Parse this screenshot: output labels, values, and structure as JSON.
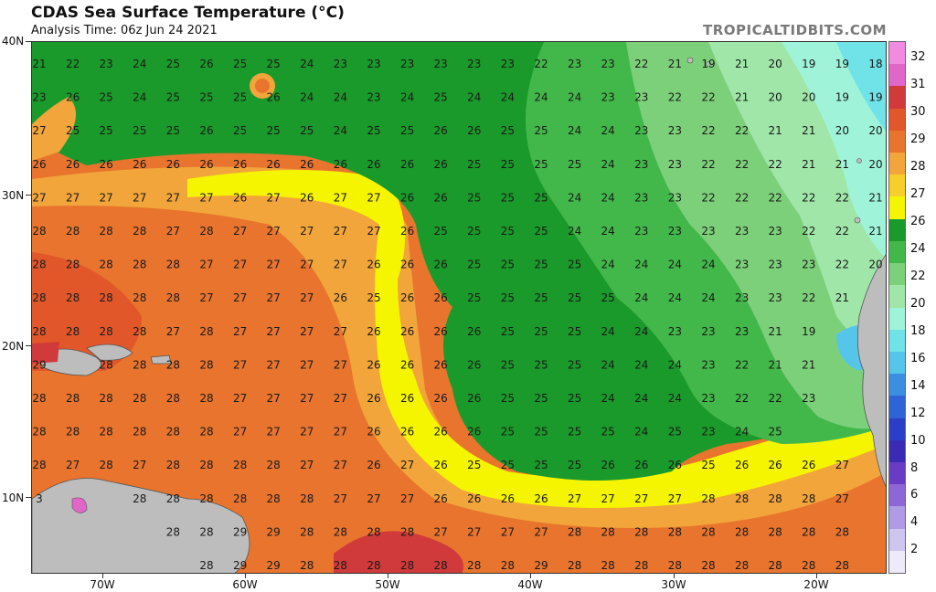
{
  "header": {
    "title": "CDAS Sea Surface Temperature (°C)",
    "subtitle": "Analysis Time: 06z Jun 24 2021",
    "brand": "TROPICALTIDBITS.COM"
  },
  "axes": {
    "lat_labels": [
      "40N",
      "30N",
      "20N",
      "10N"
    ],
    "lon_labels": [
      "70W",
      "60W",
      "50W",
      "40W",
      "30W",
      "20W"
    ]
  },
  "colorbar": {
    "labels": [
      "32",
      "31",
      "30",
      "29",
      "28",
      "27",
      "26",
      "24",
      "22",
      "20",
      "18",
      "16",
      "14",
      "12",
      "10",
      "8",
      "6",
      "4",
      "2"
    ],
    "colors": [
      "#f08be0",
      "#e066c8",
      "#d13a3a",
      "#e2572a",
      "#e8742e",
      "#f2a53a",
      "#f7cf2a",
      "#f5f500",
      "#1a9a2a",
      "#43b84a",
      "#7dd07a",
      "#9fe6a8",
      "#9ff3d8",
      "#6fe3e8",
      "#55c6ea",
      "#3b8fe0",
      "#2f64d6",
      "#2a3fc6",
      "#3a2ab4",
      "#6a3bc4",
      "#8f66d6",
      "#b09be4",
      "#cfc6f0",
      "#eeeaf9"
    ]
  },
  "map": {
    "lats": [
      "40",
      "38",
      "36",
      "34",
      "32",
      "30",
      "28",
      "26",
      "24",
      "22",
      "20",
      "18",
      "16",
      "14",
      "12",
      "10",
      "8",
      "6"
    ],
    "lons": [
      "75",
      "73",
      "71",
      "69",
      "67",
      "65",
      "63",
      "61",
      "59",
      "57",
      "55",
      "53",
      "51",
      "49",
      "47",
      "45",
      "43",
      "41",
      "39",
      "37",
      "35",
      "33",
      "31",
      "29",
      "27",
      "25",
      "23",
      "21",
      "19",
      "17",
      "15"
    ],
    "label_rows": [
      [
        "21",
        "22",
        "23",
        "24",
        "25",
        "26",
        "25",
        "25",
        "24",
        "23",
        "23",
        "23",
        "23",
        "23",
        "23",
        "22",
        "23",
        "23",
        "22",
        "21",
        "19",
        "21",
        "20",
        "19",
        "19",
        "18"
      ],
      [
        "23",
        "26",
        "25",
        "24",
        "25",
        "25",
        "25",
        "26",
        "24",
        "24",
        "23",
        "24",
        "25",
        "24",
        "24",
        "24",
        "24",
        "23",
        "23",
        "22",
        "22",
        "21",
        "20",
        "20",
        "19",
        "19"
      ],
      [
        "27",
        "25",
        "25",
        "25",
        "25",
        "26",
        "25",
        "25",
        "25",
        "24",
        "25",
        "25",
        "26",
        "26",
        "25",
        "25",
        "24",
        "24",
        "23",
        "23",
        "22",
        "22",
        "21",
        "21",
        "20",
        "20"
      ],
      [
        "26",
        "26",
        "26",
        "26",
        "26",
        "26",
        "26",
        "26",
        "26",
        "26",
        "26",
        "26",
        "26",
        "25",
        "25",
        "25",
        "25",
        "24",
        "23",
        "23",
        "22",
        "22",
        "22",
        "21",
        "21",
        "20"
      ],
      [
        "27",
        "27",
        "27",
        "27",
        "27",
        "27",
        "26",
        "27",
        "26",
        "27",
        "27",
        "26",
        "26",
        "25",
        "25",
        "25",
        "24",
        "24",
        "23",
        "23",
        "22",
        "22",
        "22",
        "22",
        "22",
        "21"
      ],
      [
        "28",
        "28",
        "28",
        "28",
        "27",
        "28",
        "27",
        "27",
        "27",
        "27",
        "27",
        "26",
        "25",
        "25",
        "25",
        "25",
        "24",
        "24",
        "23",
        "23",
        "23",
        "23",
        "23",
        "22",
        "22",
        "21"
      ],
      [
        "28",
        "28",
        "28",
        "28",
        "28",
        "27",
        "27",
        "27",
        "27",
        "27",
        "26",
        "26",
        "26",
        "25",
        "25",
        "25",
        "25",
        "24",
        "24",
        "24",
        "24",
        "23",
        "23",
        "23",
        "22",
        "20"
      ],
      [
        "28",
        "28",
        "28",
        "28",
        "28",
        "27",
        "27",
        "27",
        "27",
        "26",
        "25",
        "26",
        "26",
        "25",
        "25",
        "25",
        "25",
        "25",
        "24",
        "24",
        "24",
        "23",
        "23",
        "22",
        "21",
        ""
      ],
      [
        "28",
        "28",
        "28",
        "28",
        "27",
        "28",
        "27",
        "27",
        "27",
        "27",
        "26",
        "26",
        "26",
        "26",
        "25",
        "25",
        "25",
        "24",
        "24",
        "23",
        "23",
        "23",
        "21",
        "19",
        "",
        ""
      ],
      [
        "29",
        "",
        "28",
        "28",
        "28",
        "28",
        "27",
        "27",
        "27",
        "27",
        "26",
        "26",
        "26",
        "26",
        "25",
        "25",
        "25",
        "24",
        "24",
        "24",
        "23",
        "22",
        "21",
        "21",
        "",
        ""
      ],
      [
        "28",
        "28",
        "28",
        "28",
        "28",
        "28",
        "27",
        "27",
        "27",
        "27",
        "26",
        "26",
        "26",
        "26",
        "25",
        "25",
        "25",
        "24",
        "24",
        "24",
        "23",
        "22",
        "22",
        "23",
        "",
        ""
      ],
      [
        "28",
        "28",
        "28",
        "28",
        "28",
        "28",
        "27",
        "27",
        "27",
        "27",
        "26",
        "26",
        "26",
        "26",
        "25",
        "25",
        "25",
        "25",
        "24",
        "25",
        "23",
        "24",
        "25",
        "",
        "",
        ""
      ],
      [
        "28",
        "27",
        "28",
        "27",
        "28",
        "28",
        "28",
        "28",
        "27",
        "27",
        "26",
        "27",
        "26",
        "25",
        "25",
        "25",
        "25",
        "26",
        "26",
        "26",
        "25",
        "26",
        "26",
        "26",
        "27",
        ""
      ],
      [
        "3",
        "",
        "",
        "28",
        "28",
        "28",
        "28",
        "28",
        "28",
        "27",
        "27",
        "27",
        "26",
        "26",
        "26",
        "26",
        "27",
        "27",
        "27",
        "27",
        "28",
        "28",
        "28",
        "28",
        "27",
        ""
      ],
      [
        "",
        "",
        "",
        "",
        "28",
        "28",
        "29",
        "29",
        "28",
        "28",
        "28",
        "28",
        "27",
        "27",
        "27",
        "27",
        "28",
        "28",
        "28",
        "28",
        "28",
        "28",
        "28",
        "28",
        "28",
        ""
      ],
      [
        "",
        "",
        "",
        "",
        "",
        "28",
        "29",
        "29",
        "28",
        "28",
        "28",
        "28",
        "28",
        "28",
        "28",
        "29",
        "28",
        "28",
        "28",
        "28",
        "28",
        "28",
        "28",
        "28",
        "28",
        ""
      ]
    ]
  }
}
